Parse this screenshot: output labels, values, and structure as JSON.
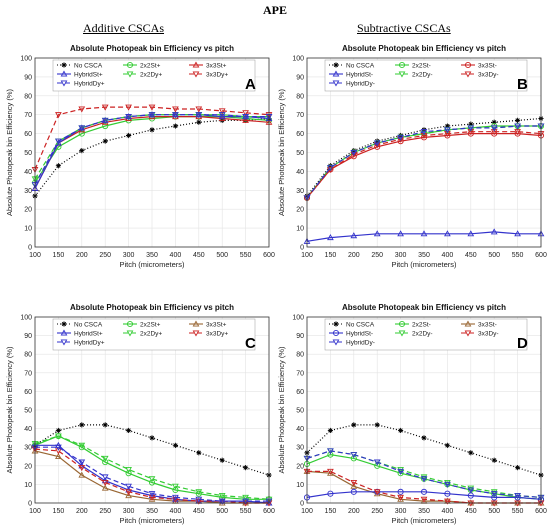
{
  "figure": {
    "title": "APE",
    "left_heading": "Additive CSCAs",
    "right_heading": "Subtractive CSCAs"
  },
  "chart_data": [
    {
      "id": "A",
      "panel_label": "A",
      "type": "line",
      "title": "Absolute Photopeak bin Efficiency vs pitch",
      "xlabel": "Pitch (micrometers)",
      "ylabel": "Absolute Photopeak bin Efficiency (%)",
      "xlim": [
        100,
        600
      ],
      "ylim": [
        0,
        100
      ],
      "xticks": [
        100,
        150,
        200,
        250,
        300,
        350,
        400,
        450,
        500,
        550,
        600
      ],
      "yticks": [
        0,
        10,
        20,
        30,
        40,
        50,
        60,
        70,
        80,
        90,
        100
      ],
      "grid": true,
      "legend_position": "top",
      "x": [
        100,
        150,
        200,
        250,
        300,
        350,
        400,
        450,
        500,
        550,
        600
      ],
      "series": [
        {
          "name": "No CSCA",
          "color": "#000000",
          "dash": "1,2",
          "marker": "star",
          "values": [
            27,
            43,
            51,
            56,
            59,
            62,
            64,
            66,
            67,
            67,
            68
          ]
        },
        {
          "name": "2x2St+",
          "color": "#33cc33",
          "dash": "",
          "marker": "circle",
          "values": [
            34,
            53,
            60,
            64,
            67,
            68,
            69,
            69,
            69,
            68,
            67
          ]
        },
        {
          "name": "3x3St+",
          "color": "#cc2222",
          "dash": "",
          "marker": "triangle-up",
          "values": [
            31,
            55,
            62,
            66,
            68,
            69,
            69,
            69,
            68,
            67,
            66
          ]
        },
        {
          "name": "HybridSt+",
          "color": "#3333cc",
          "dash": "",
          "marker": "triangle-up",
          "values": [
            31,
            55,
            63,
            67,
            69,
            70,
            70,
            70,
            69,
            69,
            68
          ]
        },
        {
          "name": "2x2Dy+",
          "color": "#33cc33",
          "dash": "5,3",
          "marker": "triangle-down",
          "values": [
            36,
            56,
            63,
            67,
            69,
            70,
            70,
            70,
            70,
            69,
            69
          ]
        },
        {
          "name": "3x3Dy+",
          "color": "#cc2222",
          "dash": "5,3",
          "marker": "triangle-down",
          "values": [
            41,
            70,
            73,
            74,
            74,
            74,
            73,
            73,
            72,
            71,
            70
          ]
        },
        {
          "name": "HybridDy+",
          "color": "#3333cc",
          "dash": "5,3",
          "marker": "triangle-down",
          "values": [
            33,
            56,
            63,
            67,
            69,
            70,
            70,
            70,
            70,
            69,
            69
          ]
        }
      ]
    },
    {
      "id": "B",
      "panel_label": "B",
      "type": "line",
      "title": "Absolute Photopeak bin Efficiency vs pitch",
      "xlabel": "Pitch (micrometers)",
      "ylabel": "Absolute Photopeak bin Efficiency (%)",
      "xlim": [
        100,
        600
      ],
      "ylim": [
        0,
        100
      ],
      "xticks": [
        100,
        150,
        200,
        250,
        300,
        350,
        400,
        450,
        500,
        550,
        600
      ],
      "yticks": [
        0,
        10,
        20,
        30,
        40,
        50,
        60,
        70,
        80,
        90,
        100
      ],
      "grid": true,
      "legend_position": "top",
      "x": [
        100,
        150,
        200,
        250,
        300,
        350,
        400,
        450,
        500,
        550,
        600
      ],
      "series": [
        {
          "name": "No CSCA",
          "color": "#000000",
          "dash": "1,2",
          "marker": "star",
          "values": [
            27,
            43,
            51,
            56,
            59,
            62,
            64,
            65,
            66,
            67,
            68
          ]
        },
        {
          "name": "2x2St-",
          "color": "#33cc33",
          "dash": "",
          "marker": "circle",
          "values": [
            26,
            42,
            50,
            55,
            58,
            60,
            62,
            63,
            64,
            64,
            64
          ]
        },
        {
          "name": "3x3St-",
          "color": "#cc2222",
          "dash": "",
          "marker": "circle",
          "values": [
            26,
            41,
            48,
            53,
            56,
            58,
            59,
            60,
            60,
            60,
            59
          ]
        },
        {
          "name": "HybridSt-",
          "color": "#3333cc",
          "dash": "",
          "marker": "triangle-up",
          "values": [
            3,
            5,
            6,
            7,
            7,
            7,
            7,
            7,
            8,
            7,
            7
          ]
        },
        {
          "name": "2x2Dy-",
          "color": "#33cc33",
          "dash": "5,3",
          "marker": "triangle-down",
          "values": [
            26,
            42,
            50,
            55,
            58,
            60,
            62,
            63,
            63,
            64,
            64
          ]
        },
        {
          "name": "3x3Dy-",
          "color": "#cc2222",
          "dash": "5,3",
          "marker": "triangle-down",
          "values": [
            26,
            41,
            49,
            54,
            57,
            59,
            60,
            61,
            61,
            61,
            60
          ]
        },
        {
          "name": "HybridDy-",
          "color": "#3333cc",
          "dash": "5,3",
          "marker": "triangle-down",
          "values": [
            26,
            42,
            50,
            55,
            58,
            61,
            62,
            63,
            63,
            64,
            64
          ]
        }
      ]
    },
    {
      "id": "C",
      "panel_label": "C",
      "type": "line",
      "title": "Absolute Photopeak bin Efficiency vs pitch",
      "xlabel": "Pitch (micrometers)",
      "ylabel": "Absolute Photopeak bin Efficiency (%)",
      "xlim": [
        100,
        600
      ],
      "ylim": [
        0,
        100
      ],
      "xticks": [
        100,
        150,
        200,
        250,
        300,
        350,
        400,
        450,
        500,
        550,
        600
      ],
      "yticks": [
        0,
        10,
        20,
        30,
        40,
        50,
        60,
        70,
        80,
        90,
        100
      ],
      "grid": true,
      "legend_position": "top",
      "x": [
        100,
        150,
        200,
        250,
        300,
        350,
        400,
        450,
        500,
        550,
        600
      ],
      "series": [
        {
          "name": "No CSCA",
          "color": "#000000",
          "dash": "1,2",
          "marker": "star",
          "values": [
            31,
            39,
            42,
            42,
            39,
            35,
            31,
            27,
            23,
            19,
            15
          ]
        },
        {
          "name": "2x2St+",
          "color": "#33cc33",
          "dash": "",
          "marker": "circle",
          "values": [
            31,
            36,
            30,
            22,
            16,
            11,
            7,
            5,
            3,
            2,
            2
          ]
        },
        {
          "name": "3x3St+",
          "color": "#996633",
          "dash": "",
          "marker": "triangle-up",
          "values": [
            28,
            25,
            15,
            8,
            4,
            2,
            1,
            1,
            0,
            0,
            0
          ]
        },
        {
          "name": "HybridSt+",
          "color": "#3333cc",
          "dash": "",
          "marker": "triangle-up",
          "values": [
            31,
            31,
            20,
            12,
            7,
            4,
            2,
            1,
            1,
            1,
            0
          ]
        },
        {
          "name": "2x2Dy+",
          "color": "#33cc33",
          "dash": "5,3",
          "marker": "triangle-down",
          "values": [
            32,
            36,
            31,
            24,
            18,
            13,
            9,
            6,
            4,
            3,
            2
          ]
        },
        {
          "name": "3x3Dy+",
          "color": "#cc2222",
          "dash": "5,3",
          "marker": "triangle-down",
          "values": [
            29,
            28,
            19,
            11,
            6,
            3,
            2,
            1,
            1,
            0,
            0
          ]
        },
        {
          "name": "HybridDy+",
          "color": "#3333cc",
          "dash": "5,3",
          "marker": "triangle-down",
          "values": [
            30,
            30,
            22,
            14,
            9,
            5,
            3,
            2,
            1,
            1,
            1
          ]
        }
      ]
    },
    {
      "id": "D",
      "panel_label": "D",
      "type": "line",
      "title": "Absolute Photopeak bin Efficiency vs pitch",
      "xlabel": "Pitch (micrometers)",
      "ylabel": "Absolute Photopeak bin Efficiency (%)",
      "xlim": [
        100,
        600
      ],
      "ylim": [
        0,
        100
      ],
      "xticks": [
        100,
        150,
        200,
        250,
        300,
        350,
        400,
        450,
        500,
        550,
        600
      ],
      "yticks": [
        0,
        10,
        20,
        30,
        40,
        50,
        60,
        70,
        80,
        90,
        100
      ],
      "grid": true,
      "legend_position": "top",
      "x": [
        100,
        150,
        200,
        250,
        300,
        350,
        400,
        450,
        500,
        550,
        600
      ],
      "series": [
        {
          "name": "No CSCA",
          "color": "#000000",
          "dash": "1,2",
          "marker": "star",
          "values": [
            27,
            39,
            42,
            42,
            39,
            35,
            31,
            27,
            23,
            19,
            15
          ]
        },
        {
          "name": "2x2St-",
          "color": "#33cc33",
          "dash": "",
          "marker": "circle",
          "values": [
            21,
            26,
            24,
            20,
            16,
            13,
            10,
            7,
            5,
            3,
            2
          ]
        },
        {
          "name": "3x3St-",
          "color": "#996633",
          "dash": "",
          "marker": "triangle-up",
          "values": [
            17,
            16,
            9,
            5,
            2,
            1,
            1,
            0,
            0,
            0,
            0
          ]
        },
        {
          "name": "HybridSt-",
          "color": "#3333cc",
          "dash": "",
          "marker": "circle",
          "values": [
            3,
            5,
            6,
            6,
            6,
            6,
            5,
            4,
            3,
            3,
            2
          ]
        },
        {
          "name": "2x2Dy-",
          "color": "#33cc33",
          "dash": "5,3",
          "marker": "triangle-down",
          "values": [
            24,
            28,
            26,
            22,
            18,
            14,
            11,
            8,
            6,
            4,
            3
          ]
        },
        {
          "name": "3x3Dy-",
          "color": "#cc2222",
          "dash": "5,3",
          "marker": "triangle-down",
          "values": [
            17,
            17,
            11,
            6,
            3,
            2,
            1,
            0,
            0,
            0,
            0
          ]
        },
        {
          "name": "HybridDy-",
          "color": "#3333cc",
          "dash": "5,3",
          "marker": "triangle-down",
          "values": [
            24,
            28,
            26,
            22,
            17,
            13,
            10,
            7,
            5,
            4,
            3
          ]
        }
      ]
    }
  ]
}
